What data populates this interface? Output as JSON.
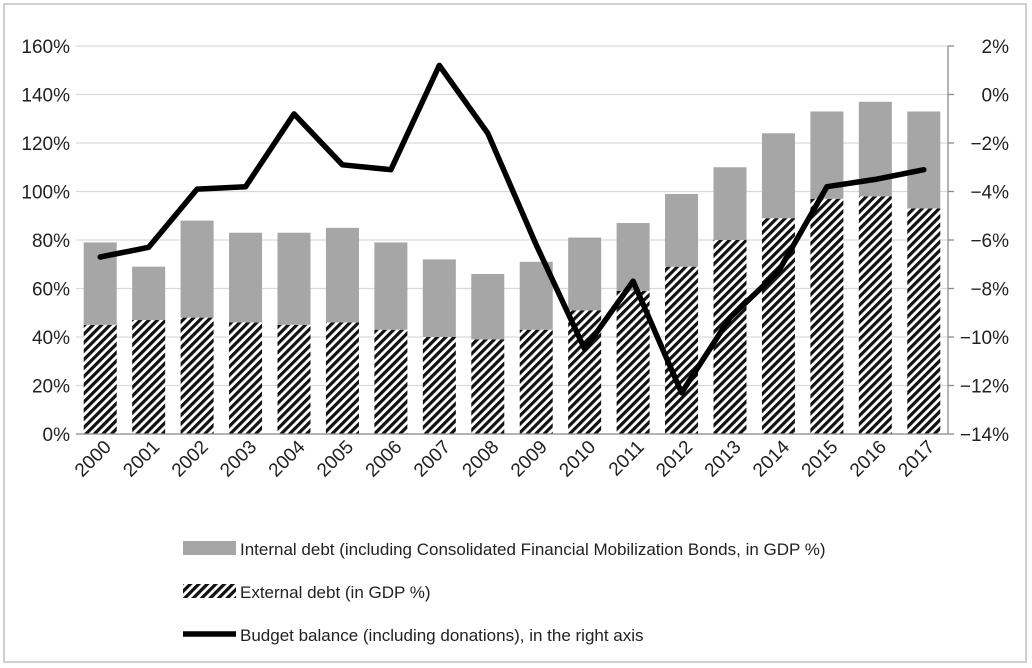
{
  "chart_data": {
    "type": "bar",
    "categories": [
      "2000",
      "2001",
      "2002",
      "2003",
      "2004",
      "2005",
      "2006",
      "2007",
      "2008",
      "2009",
      "2010",
      "2011",
      "2012",
      "2013",
      "2014",
      "2015",
      "2016",
      "2017"
    ],
    "series": [
      {
        "name": "External debt (in GDP %)",
        "kind": "stacked-bar",
        "axis": "left",
        "values": [
          45,
          47,
          48,
          46,
          45,
          46,
          43,
          40,
          39,
          43,
          51,
          59,
          69,
          80,
          89,
          97,
          98,
          93
        ]
      },
      {
        "name": "Internal debt (including Consolidated Financial Mobilization Bonds, in GDP %)",
        "kind": "stacked-bar",
        "axis": "left",
        "values": [
          34,
          22,
          40,
          37,
          38,
          39,
          36,
          32,
          27,
          28,
          30,
          28,
          30,
          30,
          35,
          36,
          39,
          40
        ]
      },
      {
        "name": "Budget balance (including donations), in the right axis",
        "kind": "line",
        "axis": "right",
        "values": [
          -6.7,
          -6.3,
          -3.9,
          -3.8,
          -0.8,
          -2.9,
          -3.1,
          1.2,
          -1.6,
          -6.2,
          -10.5,
          -7.7,
          -12.3,
          -9.2,
          -7.3,
          -3.8,
          -3.5,
          -3.1
        ]
      }
    ],
    "y_left": {
      "ylim": [
        0,
        160
      ],
      "tick_labels": [
        "0%",
        "20%",
        "40%",
        "60%",
        "80%",
        "100%",
        "120%",
        "140%",
        "160%"
      ]
    },
    "y_right": {
      "ylim": [
        -14,
        2
      ],
      "tick_labels": [
        "−14%",
        "−12%",
        "−10%",
        "−8%",
        "−6%",
        "−4%",
        "−2%",
        "0%",
        "2%"
      ]
    },
    "grid": "horizontal",
    "legend_position": "bottom",
    "colors": {
      "internal": "#a6a6a6",
      "external_hatch": "#111111",
      "line": "#000000"
    }
  }
}
